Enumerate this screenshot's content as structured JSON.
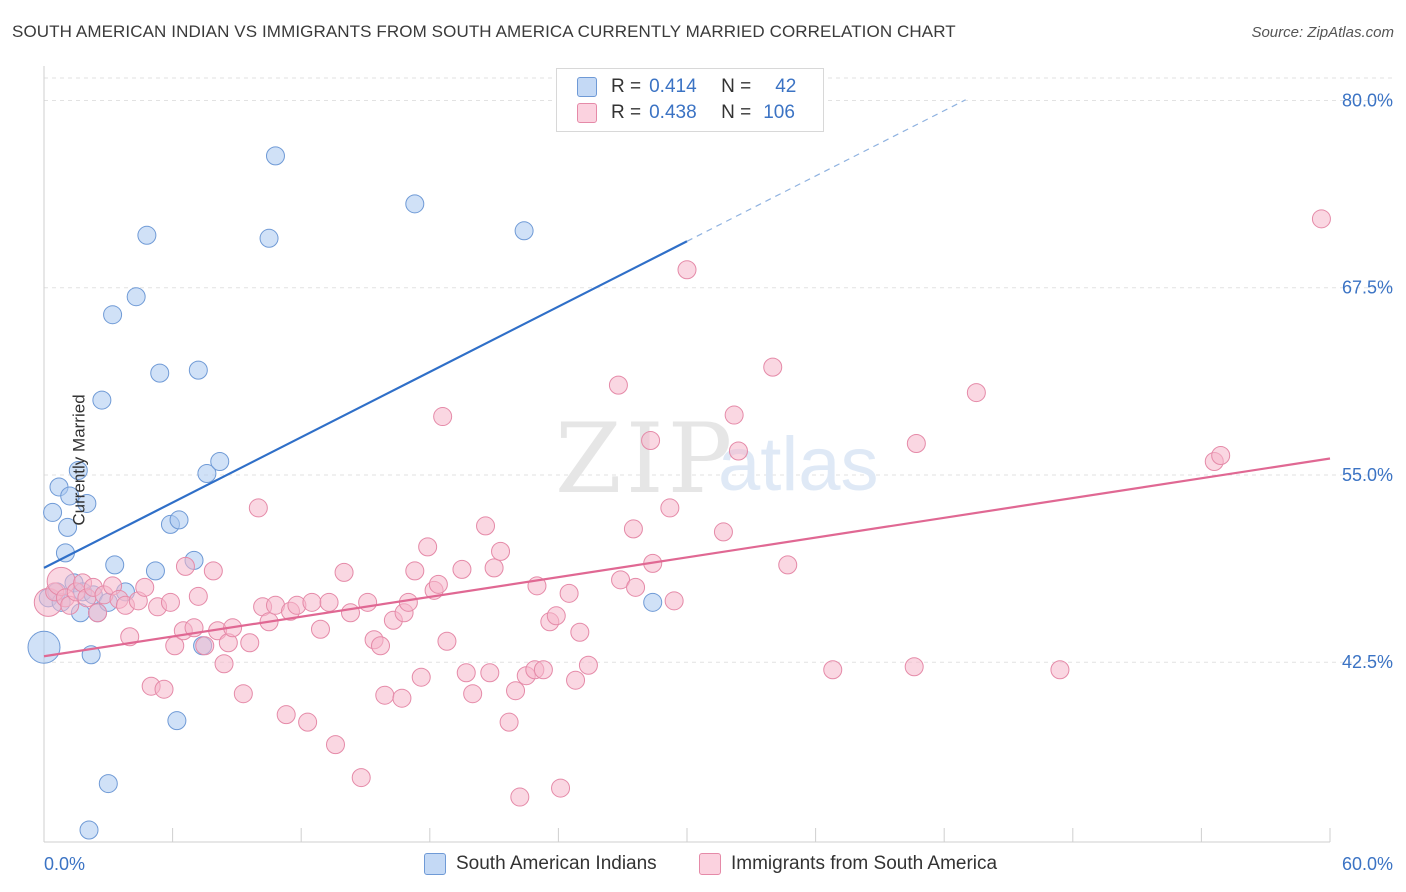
{
  "header": {
    "title": "SOUTH AMERICAN INDIAN VS IMMIGRANTS FROM SOUTH AMERICA CURRENTLY MARRIED CORRELATION CHART",
    "source": "Source: ZipAtlas.com"
  },
  "watermark": {
    "zip": "ZIP",
    "atlas": "atlas"
  },
  "legend": {
    "rows": [
      {
        "r_label": "R =",
        "r_value": "0.414",
        "n_label": "N =",
        "n_value": "42",
        "color": "#a9c8f0"
      },
      {
        "r_label": "R =",
        "r_value": "0.438",
        "n_label": "N =",
        "n_value": "106",
        "color": "#f6b6cb"
      }
    ]
  },
  "chart_data": {
    "type": "scatter",
    "title": "SOUTH AMERICAN INDIAN VS IMMIGRANTS FROM SOUTH AMERICA CURRENTLY MARRIED CORRELATION CHART",
    "xlabel": "",
    "ylabel": "Currently Married",
    "xlim": [
      0,
      60
    ],
    "ylim": [
      30.5,
      81.5
    ],
    "x_tick_labels": [
      "0.0%",
      "60.0%"
    ],
    "y_ticks": [
      42.5,
      55.0,
      67.5,
      80.0
    ],
    "y_tick_labels": [
      "42.5%",
      "55.0%",
      "67.5%",
      "80.0%"
    ],
    "grid": true,
    "legend_position": "bottom-center",
    "series": [
      {
        "name": "South American Indians",
        "color": "#a9c8f0",
        "edge": "#6f9ad6",
        "trend": {
          "x0": 0,
          "y0": 48.8,
          "x1": 30,
          "y1": 70.6,
          "x_dash_end": 43,
          "color": "#2f6fc8"
        },
        "points": [
          [
            0.0,
            43.5,
            16
          ],
          [
            0.2,
            46.8,
            9
          ],
          [
            0.4,
            52.5,
            9
          ],
          [
            0.6,
            47.2,
            9
          ],
          [
            0.7,
            54.2,
            9
          ],
          [
            0.8,
            46.5,
            9
          ],
          [
            1.0,
            49.8,
            9
          ],
          [
            1.1,
            51.5,
            9
          ],
          [
            1.2,
            53.6,
            9
          ],
          [
            1.4,
            47.8,
            9
          ],
          [
            1.6,
            55.3,
            9
          ],
          [
            1.7,
            45.8,
            9
          ],
          [
            1.8,
            47.2,
            9
          ],
          [
            2.0,
            53.1,
            9
          ],
          [
            2.1,
            31.3,
            9
          ],
          [
            2.2,
            43.0,
            9
          ],
          [
            2.3,
            47.0,
            9
          ],
          [
            2.5,
            45.8,
            9
          ],
          [
            2.7,
            60.0,
            9
          ],
          [
            3.0,
            34.4,
            9
          ],
          [
            3.0,
            46.5,
            9
          ],
          [
            3.2,
            65.7,
            9
          ],
          [
            3.3,
            49.0,
            9
          ],
          [
            3.8,
            47.2,
            9
          ],
          [
            4.3,
            66.9,
            9
          ],
          [
            4.8,
            71.0,
            9
          ],
          [
            5.2,
            48.6,
            9
          ],
          [
            5.4,
            61.8,
            9
          ],
          [
            5.9,
            51.7,
            9
          ],
          [
            6.2,
            38.6,
            9
          ],
          [
            6.3,
            52.0,
            9
          ],
          [
            7.0,
            49.3,
            9
          ],
          [
            7.2,
            62.0,
            9
          ],
          [
            7.4,
            43.6,
            9
          ],
          [
            7.6,
            55.1,
            9
          ],
          [
            8.2,
            55.9,
            9
          ],
          [
            10.5,
            70.8,
            9
          ],
          [
            10.8,
            76.3,
            9
          ],
          [
            17.3,
            73.1,
            9
          ],
          [
            22.4,
            71.3,
            9
          ],
          [
            28.4,
            46.5,
            9
          ]
        ]
      },
      {
        "name": "Immigrants from South America",
        "color": "#f6b6cb",
        "edge": "#e58aa8",
        "trend": {
          "x0": 0,
          "y0": 42.9,
          "x1": 60,
          "y1": 56.1,
          "color": "#e06893"
        },
        "points": [
          [
            0.2,
            46.5,
            14
          ],
          [
            0.5,
            47.2,
            9
          ],
          [
            0.8,
            47.9,
            14
          ],
          [
            1.0,
            46.8,
            9
          ],
          [
            1.2,
            46.3,
            9
          ],
          [
            1.5,
            47.2,
            9
          ],
          [
            1.8,
            47.8,
            9
          ],
          [
            2.0,
            46.8,
            9
          ],
          [
            2.3,
            47.5,
            9
          ],
          [
            2.5,
            45.8,
            9
          ],
          [
            2.8,
            47.0,
            9
          ],
          [
            3.2,
            47.6,
            9
          ],
          [
            3.5,
            46.7,
            9
          ],
          [
            3.8,
            46.3,
            9
          ],
          [
            4.0,
            44.2,
            9
          ],
          [
            4.4,
            46.6,
            9
          ],
          [
            4.7,
            47.5,
            9
          ],
          [
            5.0,
            40.9,
            9
          ],
          [
            5.3,
            46.2,
            9
          ],
          [
            5.6,
            40.7,
            9
          ],
          [
            5.9,
            46.5,
            9
          ],
          [
            6.1,
            43.6,
            9
          ],
          [
            6.5,
            44.6,
            9
          ],
          [
            6.6,
            48.9,
            9
          ],
          [
            7.0,
            44.8,
            9
          ],
          [
            7.2,
            46.9,
            9
          ],
          [
            7.5,
            43.6,
            9
          ],
          [
            7.9,
            48.6,
            9
          ],
          [
            8.1,
            44.6,
            9
          ],
          [
            8.4,
            42.4,
            9
          ],
          [
            8.6,
            43.8,
            9
          ],
          [
            8.8,
            44.8,
            9
          ],
          [
            9.3,
            40.4,
            9
          ],
          [
            9.6,
            43.8,
            9
          ],
          [
            10.0,
            52.8,
            9
          ],
          [
            10.2,
            46.2,
            9
          ],
          [
            10.5,
            45.2,
            9
          ],
          [
            10.8,
            46.3,
            9
          ],
          [
            11.3,
            39.0,
            9
          ],
          [
            11.5,
            45.9,
            9
          ],
          [
            11.8,
            46.3,
            9
          ],
          [
            12.3,
            38.5,
            9
          ],
          [
            12.5,
            46.5,
            9
          ],
          [
            12.9,
            44.7,
            9
          ],
          [
            13.3,
            46.5,
            9
          ],
          [
            13.6,
            37.0,
            9
          ],
          [
            14.0,
            48.5,
            9
          ],
          [
            14.3,
            45.8,
            9
          ],
          [
            14.8,
            34.8,
            9
          ],
          [
            15.1,
            46.5,
            9
          ],
          [
            15.4,
            44.0,
            9
          ],
          [
            15.7,
            43.6,
            9
          ],
          [
            15.9,
            40.3,
            9
          ],
          [
            16.3,
            45.3,
            9
          ],
          [
            16.7,
            40.1,
            9
          ],
          [
            16.8,
            45.8,
            9
          ],
          [
            17.0,
            46.5,
            9
          ],
          [
            17.3,
            48.6,
            9
          ],
          [
            17.6,
            41.5,
            9
          ],
          [
            17.9,
            50.2,
            9
          ],
          [
            18.2,
            47.3,
            9
          ],
          [
            18.4,
            47.7,
            9
          ],
          [
            18.6,
            58.9,
            9
          ],
          [
            18.8,
            43.9,
            9
          ],
          [
            19.5,
            48.7,
            9
          ],
          [
            19.7,
            41.8,
            9
          ],
          [
            20.0,
            40.4,
            9
          ],
          [
            20.6,
            51.6,
            9
          ],
          [
            20.8,
            41.8,
            9
          ],
          [
            21.0,
            48.8,
            9
          ],
          [
            21.3,
            49.9,
            9
          ],
          [
            21.7,
            38.5,
            9
          ],
          [
            22.0,
            40.6,
            9
          ],
          [
            22.2,
            33.5,
            9
          ],
          [
            22.5,
            41.6,
            9
          ],
          [
            22.9,
            42.0,
            9
          ],
          [
            23.0,
            47.6,
            9
          ],
          [
            23.3,
            42.0,
            9
          ],
          [
            23.6,
            45.2,
            9
          ],
          [
            23.9,
            45.6,
            9
          ],
          [
            24.1,
            34.1,
            9
          ],
          [
            24.5,
            47.1,
            9
          ],
          [
            24.8,
            41.3,
            9
          ],
          [
            25.0,
            44.5,
            9
          ],
          [
            25.4,
            42.3,
            9
          ],
          [
            26.8,
            61.0,
            9
          ],
          [
            26.9,
            48.0,
            9
          ],
          [
            27.5,
            51.4,
            9
          ],
          [
            27.6,
            47.5,
            9
          ],
          [
            28.3,
            57.3,
            9
          ],
          [
            28.4,
            49.1,
            9
          ],
          [
            29.2,
            52.8,
            9
          ],
          [
            29.4,
            46.6,
            9
          ],
          [
            30.0,
            68.7,
            9
          ],
          [
            31.7,
            51.2,
            9
          ],
          [
            32.2,
            59.0,
            9
          ],
          [
            32.4,
            56.6,
            9
          ],
          [
            34.0,
            62.2,
            9
          ],
          [
            34.7,
            49.0,
            9
          ],
          [
            36.8,
            42.0,
            9
          ],
          [
            40.6,
            42.2,
            9
          ],
          [
            40.7,
            57.1,
            9
          ],
          [
            43.5,
            60.5,
            9
          ],
          [
            47.4,
            42.0,
            9
          ],
          [
            54.6,
            55.9,
            9
          ],
          [
            54.9,
            56.3,
            9
          ],
          [
            59.6,
            72.1,
            9
          ]
        ]
      }
    ]
  },
  "bottom_legend": [
    {
      "label": "South American Indians",
      "color": "#a9c8f0"
    },
    {
      "label": "Immigrants from South America",
      "color": "#f6b6cb"
    }
  ]
}
